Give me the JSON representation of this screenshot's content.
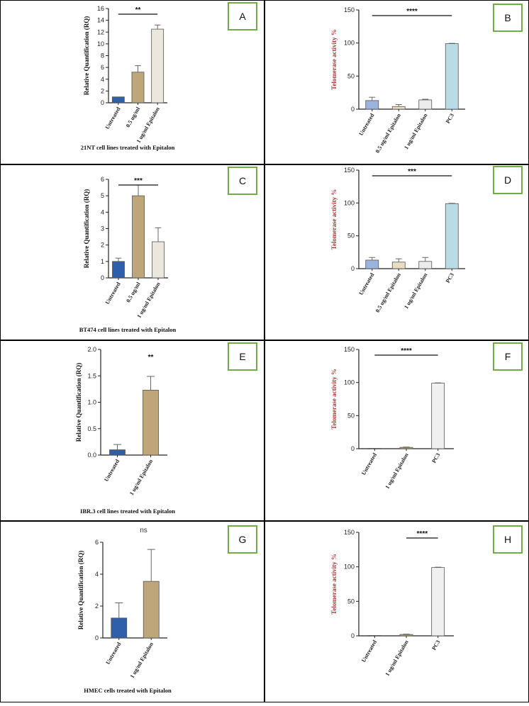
{
  "figure": {
    "colors": {
      "border": "#000000",
      "badge_border": "#70ad47",
      "untreated": "#2f5faa",
      "low_dose": "#bfa57a",
      "high_dose": "#ebe7dc",
      "trap_untreated": "#9cb4dd",
      "trap_low": "#e8dcc2",
      "trap_high": "#ececec",
      "pc3": "#b9dbe4",
      "pc3_grey": "#f0f0f0",
      "ylabel_red": "#b1342f"
    }
  },
  "chart_data": [
    {
      "id": "A",
      "type": "bar",
      "panel_label": "A",
      "categories": [
        "Untreated",
        "0.5 ug/ml",
        "1 ug/ml Epitalon"
      ],
      "values": [
        1.0,
        5.2,
        12.5
      ],
      "errors": [
        0,
        1.1,
        0.7
      ],
      "colors": [
        "#2f5faa",
        "#bfa57a",
        "#ebe7dc"
      ],
      "ylabel": "Relative Quantification (RQ)",
      "ylabel_color": "black",
      "caption": "21NT cell lines treated with Epitalon",
      "ylim": [
        0,
        16
      ],
      "yticks": [
        0,
        2,
        4,
        6,
        8,
        10,
        12,
        14,
        16
      ],
      "significance": {
        "label": "**",
        "from": 0,
        "to": 2
      }
    },
    {
      "id": "B",
      "type": "bar",
      "panel_label": "B",
      "categories": [
        "Untreated",
        "0.5 ug/ml Epitalon",
        "1 ug/ml Epitalon",
        "PC3"
      ],
      "values": [
        13,
        4,
        14,
        99
      ],
      "errors": [
        5,
        3,
        1,
        0.5
      ],
      "colors": [
        "#9cb4dd",
        "#e8dcc2",
        "#ececec",
        "#b9dbe4"
      ],
      "ylabel": "Telomerase activity %",
      "ylabel_color": "red",
      "caption": "",
      "ylim": [
        0,
        150
      ],
      "yticks": [
        0,
        50,
        100,
        150
      ],
      "significance": {
        "label": "****",
        "from": 0,
        "to": 3
      }
    },
    {
      "id": "C",
      "type": "bar",
      "panel_label": "C",
      "categories": [
        "Untreated",
        "0.5 ug/ml",
        "1 ug/ml Epitalon"
      ],
      "values": [
        1.0,
        5.0,
        2.2
      ],
      "errors": [
        0.2,
        0.65,
        0.85
      ],
      "colors": [
        "#2f5faa",
        "#bfa57a",
        "#ebe7dc"
      ],
      "ylabel": "Relative Quantification (RQ)",
      "ylabel_color": "black",
      "caption": "BT474 cell lines treated with Epitalon",
      "ylim": [
        0,
        6
      ],
      "yticks": [
        0,
        1,
        2,
        3,
        4,
        5,
        6
      ],
      "significance": {
        "label": "***",
        "from": 0,
        "to": 2
      }
    },
    {
      "id": "D",
      "type": "bar",
      "panel_label": "D",
      "categories": [
        "Untreated",
        "0.5 ug/ml Epitalon",
        "1 ug/ml Epitalon",
        "PC3"
      ],
      "values": [
        13,
        10,
        11,
        99
      ],
      "errors": [
        4,
        5,
        6,
        0.5
      ],
      "colors": [
        "#9cb4dd",
        "#e8dcc2",
        "#ececec",
        "#b9dbe4"
      ],
      "ylabel": "Telomerase activity %",
      "ylabel_color": "red",
      "caption": "",
      "ylim": [
        0,
        150
      ],
      "yticks": [
        0,
        50,
        100,
        150
      ],
      "significance": {
        "label": "***",
        "from": 0,
        "to": 3
      }
    },
    {
      "id": "E",
      "type": "bar",
      "panel_label": "E",
      "categories": [
        "Untreated",
        "1 ug/ml Epitalon"
      ],
      "values": [
        0.1,
        1.23
      ],
      "errors": [
        0.1,
        0.26
      ],
      "colors": [
        "#2f5faa",
        "#bfa57a"
      ],
      "ylabel": "Relative Quantification (RQ)",
      "ylabel_color": "black",
      "caption": "IBR.3 cell lines treated with Epitalon",
      "ylim": [
        0,
        2.0
      ],
      "yticks": [
        0.0,
        0.5,
        1.0,
        1.5,
        2.0
      ],
      "ytick_labels": [
        "0.0",
        "0.5",
        "1.0",
        "1.5",
        "2.0"
      ],
      "significance": {
        "label": "**",
        "bar": 1
      }
    },
    {
      "id": "F",
      "type": "bar",
      "panel_label": "F",
      "categories": [
        "Untreated",
        "1 ug/ml Epitalon",
        "PC3"
      ],
      "values": [
        0.5,
        2,
        99
      ],
      "errors": [
        0,
        0.5,
        0.5
      ],
      "colors": [
        "#2f5faa",
        "#bfa57a",
        "#f0f0f0"
      ],
      "ylabel": "Telomerase activity %",
      "ylabel_color": "red",
      "caption": "",
      "ylim": [
        0,
        150
      ],
      "yticks": [
        0,
        50,
        100,
        150
      ],
      "significance": {
        "label": "****",
        "from": 0,
        "to": 2
      }
    },
    {
      "id": "G",
      "type": "bar",
      "panel_label": "G",
      "categories": [
        "Untreated",
        "1 ug/ml Epitalon"
      ],
      "values": [
        1.25,
        3.55
      ],
      "errors": [
        0.95,
        2.0
      ],
      "colors": [
        "#2f5faa",
        "#bfa57a"
      ],
      "ylabel": "Relative Quantification (RQ)",
      "ylabel_color": "black",
      "caption": "HMEC cells treated with Epitalon",
      "ylim": [
        0,
        6
      ],
      "yticks": [
        0,
        2,
        4,
        6
      ],
      "significance": {
        "label": "ns",
        "bar": null
      }
    },
    {
      "id": "H",
      "type": "bar",
      "panel_label": "H",
      "categories": [
        "Untreated",
        "1 ug/ml Epitalon",
        "PC3"
      ],
      "values": [
        0.5,
        2,
        99
      ],
      "errors": [
        0,
        0.5,
        0.5
      ],
      "colors": [
        "#2f5faa",
        "#bfa57a",
        "#f0f0f0"
      ],
      "ylabel": "Telomerase activity %",
      "ylabel_color": "red",
      "caption": "",
      "ylim": [
        0,
        150
      ],
      "yticks": [
        0,
        50,
        100,
        150
      ],
      "significance": {
        "label": "****",
        "from": 1,
        "to": 2
      }
    }
  ]
}
